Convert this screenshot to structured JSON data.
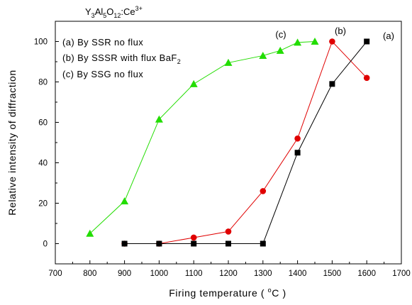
{
  "chart_data": {
    "type": "line",
    "title_parts": [
      "Y",
      "3",
      "Al",
      "5",
      "O",
      "12",
      ":Ce",
      "3+"
    ],
    "xlabel_parts": [
      "Firing temperature ( ",
      "o",
      "C )"
    ],
    "ylabel": "Relative intensity of diffraction",
    "xlim": [
      700,
      1700
    ],
    "ylim": [
      -10,
      110
    ],
    "xticks": [
      700,
      800,
      900,
      1000,
      1100,
      1200,
      1300,
      1400,
      1500,
      1600,
      1700
    ],
    "yticks": [
      0,
      20,
      40,
      60,
      80,
      100
    ],
    "grid": false,
    "legend_lines": [
      {
        "text": "(a) By SSR no flux"
      },
      {
        "text": "(b) By SSSR with flux BaF",
        "sub": "2"
      },
      {
        "text": "(c) By SSG no flux"
      }
    ],
    "series": [
      {
        "tag": "(a)",
        "color": "#000000",
        "marker": "square",
        "x": [
          900,
          1000,
          1100,
          1200,
          1300,
          1400,
          1500,
          1600
        ],
        "y": [
          0,
          0,
          0,
          0,
          0,
          45,
          79,
          100
        ]
      },
      {
        "tag": "(b)",
        "color": "#e00000",
        "marker": "circle",
        "x": [
          900,
          1000,
          1100,
          1200,
          1300,
          1400,
          1500,
          1600
        ],
        "y": [
          0,
          0,
          3,
          6,
          26,
          52,
          100,
          82
        ]
      },
      {
        "tag": "(c)",
        "color": "#22dd00",
        "marker": "triangle",
        "x": [
          800,
          900,
          1000,
          1100,
          1200,
          1300,
          1350,
          1400,
          1450
        ],
        "y": [
          5,
          21,
          61.5,
          79,
          89.5,
          93,
          95.5,
          99.5,
          100
        ]
      }
    ]
  }
}
